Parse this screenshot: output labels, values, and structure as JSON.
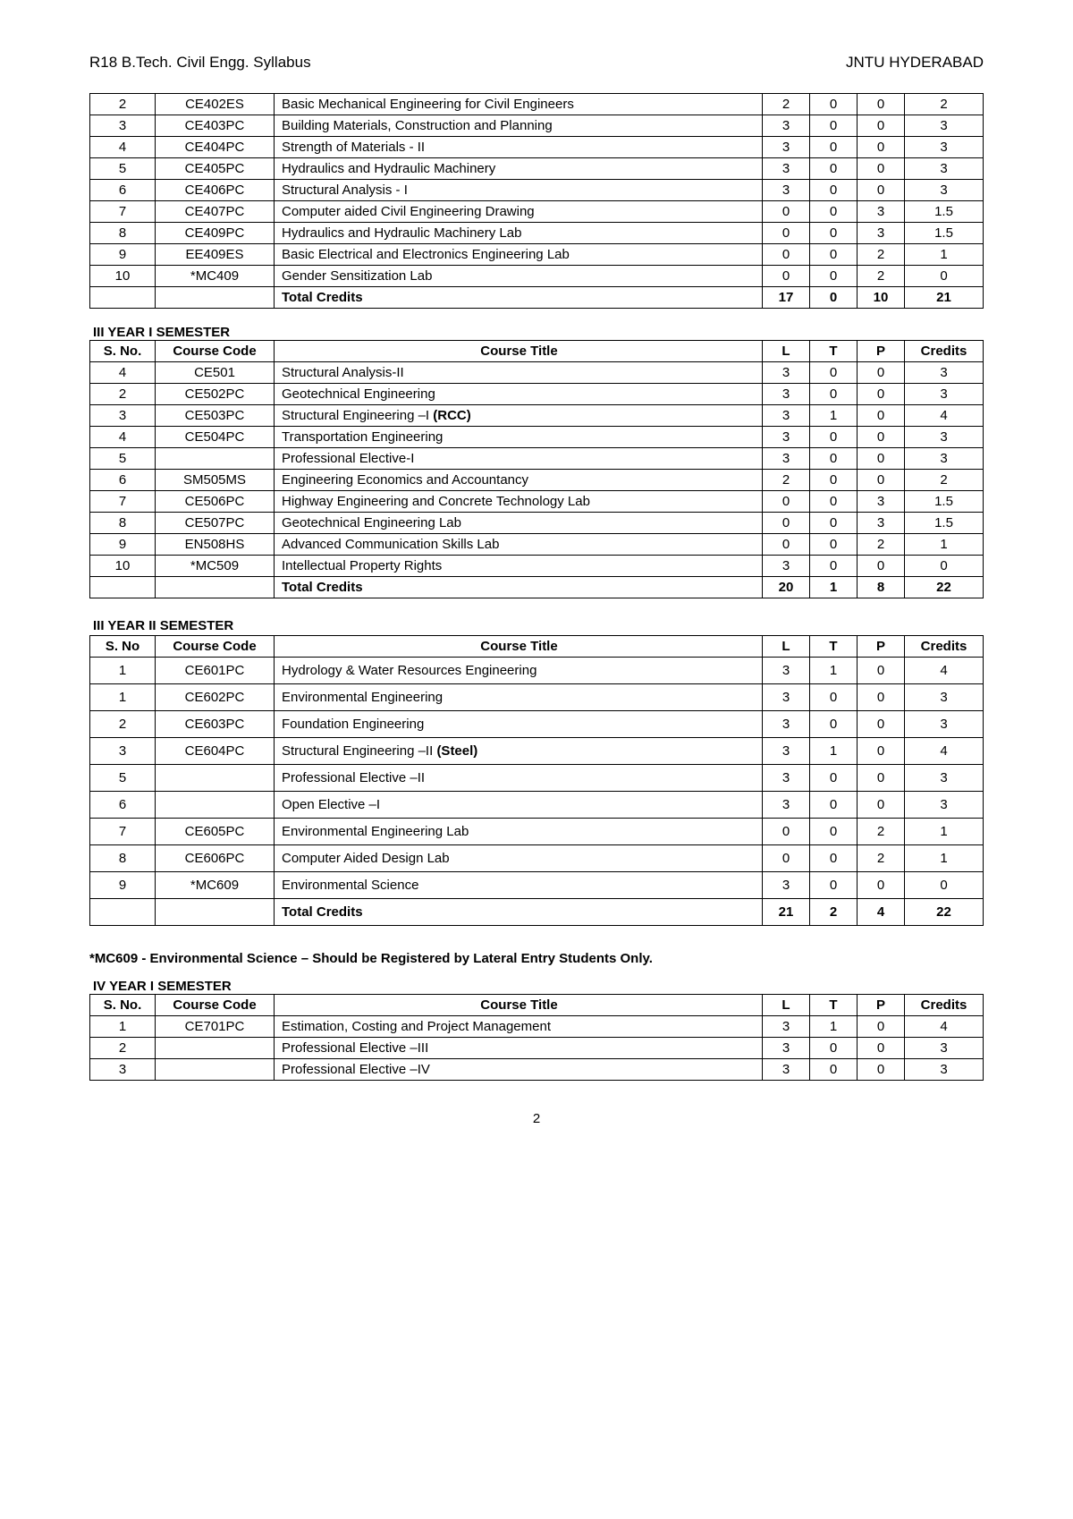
{
  "header": {
    "left": "R18 B.Tech. Civil Engg. Syllabus",
    "right": "JNTU HYDERABAD"
  },
  "table1": {
    "rows": [
      {
        "sno": "2",
        "code": "CE402ES",
        "title": "Basic Mechanical Engineering for Civil Engineers",
        "l": "2",
        "t": "0",
        "p": "0",
        "c": "2"
      },
      {
        "sno": "3",
        "code": "CE403PC",
        "title": "Building Materials, Construction and Planning",
        "l": "3",
        "t": "0",
        "p": "0",
        "c": "3"
      },
      {
        "sno": "4",
        "code": "CE404PC",
        "title": "Strength of Materials - II",
        "l": "3",
        "t": "0",
        "p": "0",
        "c": "3"
      },
      {
        "sno": "5",
        "code": "CE405PC",
        "title": "Hydraulics and Hydraulic Machinery",
        "l": "3",
        "t": "0",
        "p": "0",
        "c": "3"
      },
      {
        "sno": "6",
        "code": "CE406PC",
        "title": "Structural Analysis - I",
        "l": "3",
        "t": "0",
        "p": "0",
        "c": "3"
      },
      {
        "sno": "7",
        "code": "CE407PC",
        "title": "Computer aided Civil Engineering Drawing",
        "l": "0",
        "t": "0",
        "p": "3",
        "c": "1.5"
      },
      {
        "sno": "8",
        "code": "CE409PC",
        "title": "Hydraulics and Hydraulic Machinery Lab",
        "l": "0",
        "t": "0",
        "p": "3",
        "c": "1.5"
      },
      {
        "sno": "9",
        "code": "EE409ES",
        "title": "Basic Electrical and Electronics Engineering Lab",
        "l": "0",
        "t": "0",
        "p": "2",
        "c": "1"
      },
      {
        "sno": "10",
        "code": "*MC409",
        "title": "Gender Sensitization Lab",
        "l": "0",
        "t": "0",
        "p": "2",
        "c": "0"
      }
    ],
    "total": {
      "label": "Total Credits",
      "l": "17",
      "t": "0",
      "p": "10",
      "c": "21"
    }
  },
  "sec2": {
    "heading": "III YEAR I SEMESTER",
    "headers": {
      "sno": "S. No.",
      "code": "Course Code",
      "title": "Course Title",
      "l": "L",
      "t": "T",
      "p": "P",
      "c": "Credits"
    },
    "rows": [
      {
        "sno": "4",
        "code": "CE501",
        "title": "Structural Analysis-II",
        "l": "3",
        "t": "0",
        "p": "0",
        "c": "3"
      },
      {
        "sno": "2",
        "code": "CE502PC",
        "title": "Geotechnical Engineering",
        "l": "3",
        "t": "0",
        "p": "0",
        "c": "3"
      },
      {
        "sno": "3",
        "code": "CE503PC",
        "title_pre": "Structural Engineering –I ",
        "title_bold": "(RCC)",
        "l": "3",
        "t": "1",
        "p": "0",
        "c": "4"
      },
      {
        "sno": "4",
        "code": "CE504PC",
        "title": "Transportation Engineering",
        "l": "3",
        "t": "0",
        "p": "0",
        "c": "3"
      },
      {
        "sno": "5",
        "code": "",
        "title": "Professional Elective-I",
        "l": "3",
        "t": "0",
        "p": "0",
        "c": "3"
      },
      {
        "sno": "6",
        "code": "SM505MS",
        "title": "Engineering Economics and Accountancy",
        "l": "2",
        "t": "0",
        "p": "0",
        "c": "2"
      },
      {
        "sno": "7",
        "code": "CE506PC",
        "title": "Highway Engineering and Concrete Technology Lab",
        "l": "0",
        "t": "0",
        "p": "3",
        "c": "1.5"
      },
      {
        "sno": "8",
        "code": "CE507PC",
        "title": "Geotechnical Engineering Lab",
        "l": "0",
        "t": "0",
        "p": "3",
        "c": "1.5"
      },
      {
        "sno": "9",
        "code": "EN508HS",
        "title": "Advanced Communication Skills Lab",
        "l": "0",
        "t": "0",
        "p": "2",
        "c": "1"
      },
      {
        "sno": "10",
        "code": "*MC509",
        "title": "Intellectual Property Rights",
        "l": "3",
        "t": "0",
        "p": "0",
        "c": "0"
      }
    ],
    "total": {
      "label": "Total Credits",
      "l": "20",
      "t": "1",
      "p": "8",
      "c": "22"
    }
  },
  "sec3": {
    "heading": "III YEAR II SEMESTER",
    "headers": {
      "sno": "S. No",
      "code": "Course Code",
      "title": "Course Title",
      "l": "L",
      "t": "T",
      "p": "P",
      "c": "Credits"
    },
    "rows": [
      {
        "sno": "1",
        "code": "CE601PC",
        "title": "Hydrology & Water Resources Engineering",
        "l": "3",
        "t": "1",
        "p": "0",
        "c": "4"
      },
      {
        "sno": "1",
        "code": "CE602PC",
        "title": "Environmental Engineering",
        "l": "3",
        "t": "0",
        "p": "0",
        "c": "3"
      },
      {
        "sno": "2",
        "code": "CE603PC",
        "title": "Foundation Engineering",
        "l": "3",
        "t": "0",
        "p": "0",
        "c": "3"
      },
      {
        "sno": "3",
        "code": "CE604PC",
        "title_pre": "Structural Engineering –II ",
        "title_bold": "(Steel)",
        "l": "3",
        "t": "1",
        "p": "0",
        "c": "4"
      },
      {
        "sno": "5",
        "code": "",
        "title": "Professional Elective –II",
        "l": "3",
        "t": "0",
        "p": "0",
        "c": "3"
      },
      {
        "sno": "6",
        "code": "",
        "title": "Open Elective –I",
        "l": "3",
        "t": "0",
        "p": "0",
        "c": "3"
      },
      {
        "sno": "7",
        "code": "CE605PC",
        "title": "Environmental Engineering Lab",
        "l": "0",
        "t": "0",
        "p": "2",
        "c": "1"
      },
      {
        "sno": "8",
        "code": "CE606PC",
        "title": "Computer Aided Design Lab",
        "l": "0",
        "t": "0",
        "p": "2",
        "c": "1"
      },
      {
        "sno": "9",
        "code": "*MC609",
        "title": "Environmental Science",
        "l": "3",
        "t": "0",
        "p": "0",
        "c": "0"
      }
    ],
    "total": {
      "label": "Total Credits",
      "l": "21",
      "t": "2",
      "p": "4",
      "c": "22"
    }
  },
  "note": "*MC609 - Environmental Science – Should be Registered by Lateral Entry Students Only.",
  "sec4": {
    "heading": "IV YEAR I SEMESTER",
    "headers": {
      "sno": "S. No.",
      "code": "Course Code",
      "title": "Course Title",
      "l": "L",
      "t": "T",
      "p": "P",
      "c": "Credits"
    },
    "rows": [
      {
        "sno": "1",
        "code": "CE701PC",
        "title": "Estimation, Costing and Project Management",
        "l": "3",
        "t": "1",
        "p": "0",
        "c": "4"
      },
      {
        "sno": "2",
        "code": "",
        "title": "Professional Elective –III",
        "l": "3",
        "t": "0",
        "p": "0",
        "c": "3"
      },
      {
        "sno": "3",
        "code": "",
        "title": "Professional Elective –IV",
        "l": "3",
        "t": "0",
        "p": "0",
        "c": "3"
      }
    ]
  },
  "pageNumber": "2"
}
